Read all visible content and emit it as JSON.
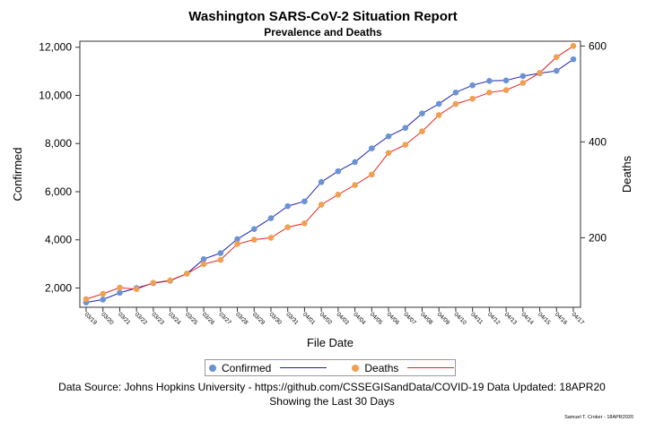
{
  "chart_data": {
    "type": "line",
    "title": "Washington SARS-CoV-2 Situation Report",
    "subtitle": "Prevalence and Deaths",
    "xlabel": "File Date",
    "ylabel_left": "Confirmed",
    "ylabel_right": "Deaths",
    "categories": [
      "03/19",
      "03/20",
      "03/21",
      "03/22",
      "03/23",
      "03/24",
      "03/25",
      "03/26",
      "03/27",
      "03/28",
      "03/29",
      "03/30",
      "03/31",
      "04/01",
      "04/02",
      "04/03",
      "04/04",
      "04/05",
      "04/06",
      "04/07",
      "04/08",
      "04/09",
      "04/10",
      "04/11",
      "04/12",
      "04/13",
      "04/14",
      "04/15",
      "04/16",
      "04/17"
    ],
    "y_left_ticks": [
      "2,000",
      "4,000",
      "6,000",
      "8,000",
      "10,000",
      "12,000"
    ],
    "y_right_ticks": [
      "200",
      "400",
      "600"
    ],
    "ylim_left": [
      1200,
      12250
    ],
    "ylim_right": [
      55,
      610
    ],
    "grid": false,
    "legend_position": "bottom",
    "series": [
      {
        "name": "Confirmed",
        "axis": "left",
        "marker_color": "#6a93d4",
        "line_color": "#1f1fb4",
        "values": [
          1400,
          1520,
          1800,
          2000,
          2200,
          2300,
          2600,
          3200,
          3450,
          4030,
          4450,
          4900,
          5400,
          5600,
          6400,
          6850,
          7230,
          7800,
          8300,
          8650,
          9250,
          9650,
          10120,
          10420,
          10600,
          10620,
          10800,
          10920,
          11020,
          11500
        ]
      },
      {
        "name": "Deaths",
        "axis": "right",
        "marker_color": "#f0a050",
        "line_color": "#e8231e",
        "values": [
          72,
          83,
          96,
          93,
          106,
          111,
          125,
          145,
          154,
          187,
          196,
          200,
          222,
          230,
          269,
          290,
          310,
          332,
          377,
          394,
          422,
          456,
          479,
          490,
          503,
          508,
          523,
          544,
          577,
          600
        ]
      }
    ]
  },
  "footer": {
    "line1": "Data Source: Johns Hopkins University - https://github.com/CSSEGISandData/COVID-19 Data Updated: 18APR20",
    "line2": "Showing the Last 30 Days",
    "signature": "Samuel T. Croker - 18APR2020"
  }
}
